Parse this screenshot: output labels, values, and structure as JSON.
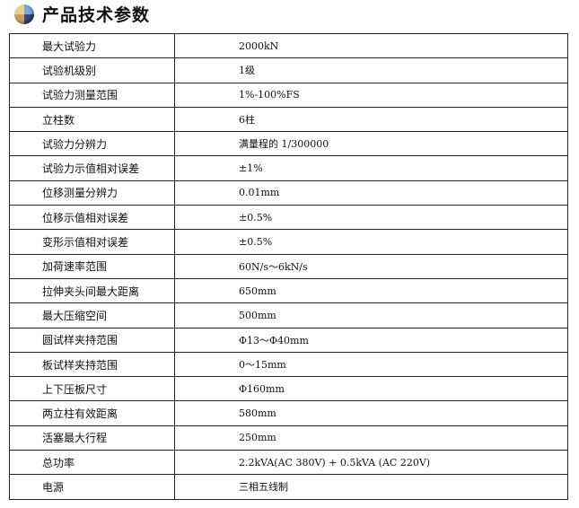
{
  "header": {
    "title": "产品技术参数",
    "icon": "multicolor-ball-icon"
  },
  "rows": [
    {
      "label": "最大试验力",
      "value": "2000kN"
    },
    {
      "label": "试验机级别",
      "value": "1级"
    },
    {
      "label": "试验力测量范围",
      "value": "1%-100%FS"
    },
    {
      "label": "立柱数",
      "value": "6柱"
    },
    {
      "label": "试验力分辨力",
      "value": "满量程的 1/300000"
    },
    {
      "label": "试验力示值相对误差",
      "value": "±1%"
    },
    {
      "label": "位移测量分辨力",
      "value": "0.01mm"
    },
    {
      "label": "位移示值相对误差",
      "value": "±0.5%"
    },
    {
      "label": "变形示值相对误差",
      "value": "±0.5%"
    },
    {
      "label": "加荷速率范围",
      "value": "60N/s～6kN/s"
    },
    {
      "label": "拉伸夹头间最大距离",
      "value": "650mm"
    },
    {
      "label": "最大压缩空间",
      "value": "500mm"
    },
    {
      "label": "圆试样夹持范围",
      "value": "Φ13～Φ40mm"
    },
    {
      "label": "板试样夹持范围",
      "value": "0～15mm"
    },
    {
      "label": "上下压板尺寸",
      "value": "Φ160mm"
    },
    {
      "label": "两立柱有效距离",
      "value": "580mm"
    },
    {
      "label": "活塞最大行程",
      "value": "250mm"
    },
    {
      "label": "总功率",
      "value": "2.2kVA(AC 380V) + 0.5kVA (AC 220V)"
    },
    {
      "label": "电源",
      "value": "三相五线制"
    }
  ]
}
